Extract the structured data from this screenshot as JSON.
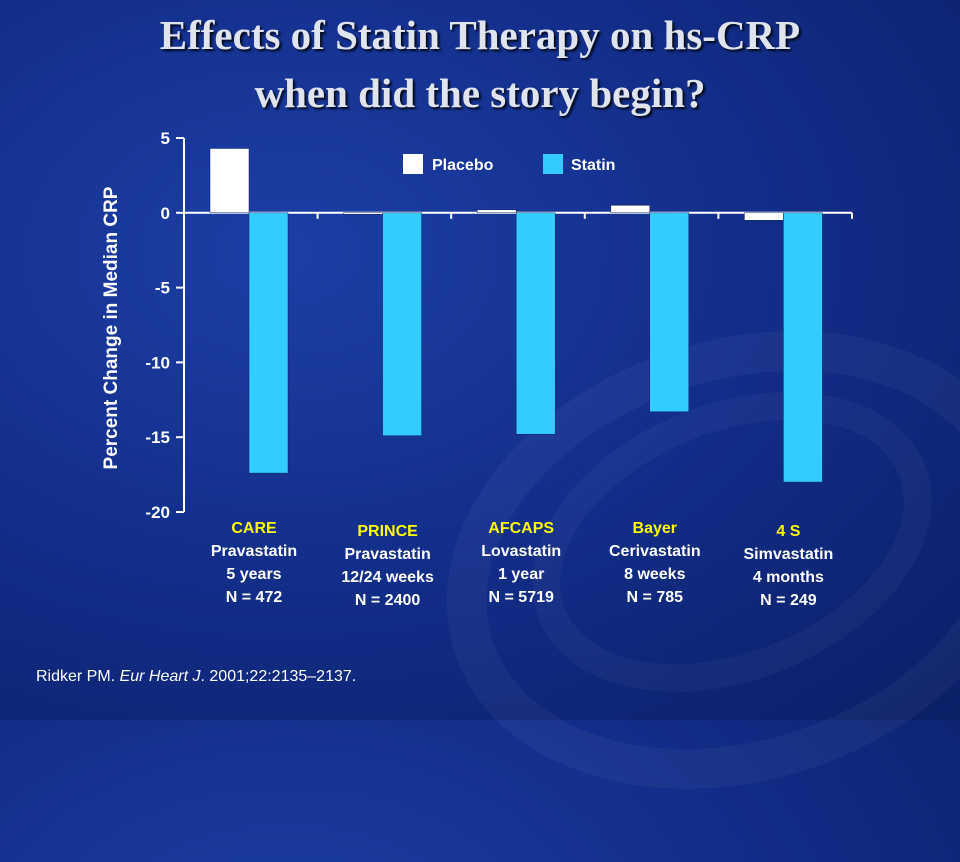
{
  "slide": {
    "title_line1": "Effects of Statin Therapy on hs-CRP",
    "title_line2": "when did the story begin?",
    "citation_author": "Ridker PM. ",
    "citation_journal": "Eur Heart J",
    "citation_rest": ". 2001;22:2135–2137."
  },
  "colors": {
    "placebo": "#ffffff",
    "statin": "#33ccff",
    "study_name": "#ffff00",
    "study_text": "#ffffff",
    "axis": "#ffffff"
  },
  "chart_data": {
    "type": "bar",
    "ylabel": "Percent Change in Median CRP",
    "ylim": [
      -20,
      5
    ],
    "yticks": [
      5,
      0,
      -5,
      -10,
      -15,
      -20
    ],
    "legend_position": "top-center",
    "categories": [
      {
        "name": "CARE",
        "lines": [
          "Pravastatin",
          "5 years",
          "N = 472"
        ]
      },
      {
        "name": "PRINCE",
        "lines": [
          "Pravastatin",
          "12/24 weeks",
          "N = 2400"
        ]
      },
      {
        "name": "AFCAPS",
        "lines": [
          "Lovastatin",
          "1 year",
          "N = 5719"
        ]
      },
      {
        "name": "Bayer",
        "lines": [
          "Cerivastatin",
          "8 weeks",
          "N = 785"
        ]
      },
      {
        "name": "4 S",
        "lines": [
          "Simvastatin",
          "4 months",
          "N = 249"
        ]
      }
    ],
    "series": [
      {
        "name": "Placebo",
        "values": [
          4.3,
          0,
          0.2,
          0.5,
          -0.5
        ]
      },
      {
        "name": "Statin",
        "values": [
          -17.4,
          -14.9,
          -14.8,
          -13.3,
          -18.0
        ]
      }
    ]
  }
}
